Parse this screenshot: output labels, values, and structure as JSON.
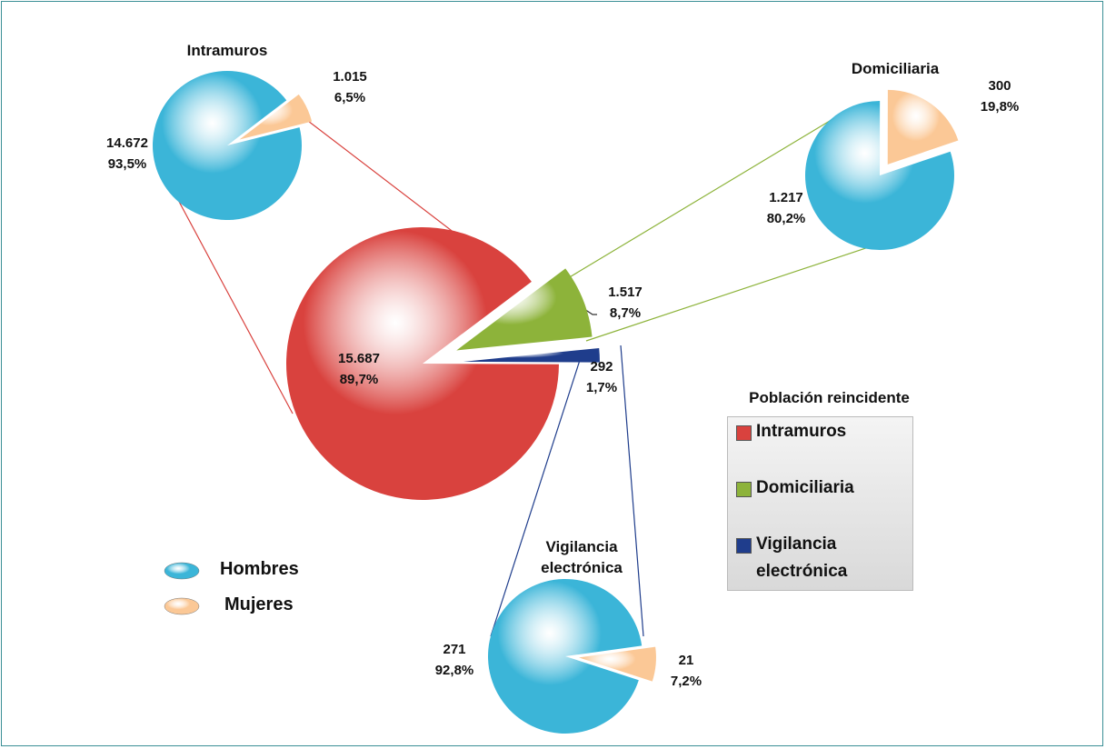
{
  "chart_data": [
    {
      "type": "pie",
      "legend_title": "Población reincidente",
      "categories": [
        "Intramuros",
        "Domiciliaria",
        "Vigilancia electrónica"
      ],
      "values": [
        15687,
        1517,
        292
      ],
      "value_labels": [
        "15.687",
        "1.517",
        "292"
      ],
      "percent_labels": [
        "89,7%",
        "8,7%",
        "1,7%"
      ],
      "colors": [
        "#d9423e",
        "#8db33a",
        "#1f3d8c"
      ]
    },
    {
      "type": "pie",
      "title": "Intramuros",
      "categories": [
        "Hombres",
        "Mujeres"
      ],
      "values": [
        14672,
        1015
      ],
      "value_labels": [
        "14.672",
        "1.015"
      ],
      "percent_labels": [
        "93,5%",
        "6,5%"
      ],
      "colors": [
        "#3bb5d8",
        "#fbc896"
      ]
    },
    {
      "type": "pie",
      "title": "Domiciliaria",
      "categories": [
        "Hombres",
        "Mujeres"
      ],
      "values": [
        1217,
        300
      ],
      "value_labels": [
        "1.217",
        "300"
      ],
      "percent_labels": [
        "80,2%",
        "19,8%"
      ],
      "colors": [
        "#3bb5d8",
        "#fbc896"
      ]
    },
    {
      "type": "pie",
      "title": "Vigilancia electrónica",
      "categories": [
        "Hombres",
        "Mujeres"
      ],
      "values": [
        271,
        21
      ],
      "value_labels": [
        "271",
        "21"
      ],
      "percent_labels": [
        "92,8%",
        "7,2%"
      ],
      "colors": [
        "#3bb5d8",
        "#fbc896"
      ]
    }
  ]
}
